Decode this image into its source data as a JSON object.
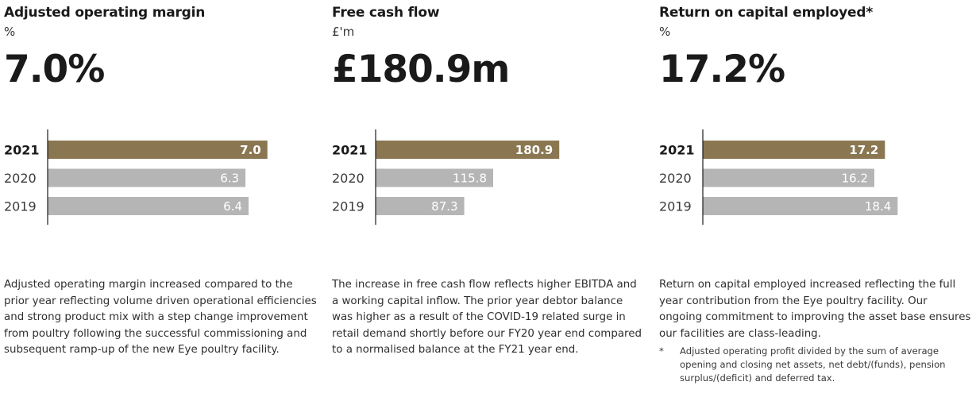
{
  "colors": {
    "current": "#8a7752",
    "prior": "#b5b5b5",
    "axis": "#1a1a1a"
  },
  "panels": [
    {
      "title": "Adjusted operating margin",
      "unit": "%",
      "headline": "7.0%",
      "description": "Adjusted operating margin increased compared to the prior year reflecting volume driven operational efficiencies and strong product mix with a step change improvement from poultry following the successful commissioning and subsequent ramp-up of the new Eye poultry facility."
    },
    {
      "title": "Free cash flow",
      "unit": "£'m",
      "headline": "£180.9m",
      "description": "The increase in free cash flow reflects higher EBITDA and a working capital inflow. The prior year debtor balance was higher as a result of the COVID-19 related surge in retail demand shortly before our FY20 year end compared to a normalised balance at the FY21 year end."
    },
    {
      "title": "Return on capital employed*",
      "unit": "%",
      "headline": "17.2%",
      "description": "Return on capital employed increased reflecting the full year contribution from the Eye poultry facility. Our ongoing commitment to improving the asset base ensures our facilities are class-leading.",
      "footnote_mark": "*",
      "footnote": "Adjusted operating profit divided by the sum of average opening and closing net assets, net debt/(funds), pension surplus/(deficit) and deferred tax."
    }
  ],
  "chart_data": [
    {
      "type": "bar",
      "orientation": "horizontal",
      "categories": [
        "2021",
        "2020",
        "2019"
      ],
      "values": [
        7.0,
        6.3,
        6.4
      ],
      "value_labels": [
        "7.0",
        "6.3",
        "6.4"
      ],
      "xlim": [
        0,
        8.6
      ],
      "highlight_index": 0
    },
    {
      "type": "bar",
      "orientation": "horizontal",
      "categories": [
        "2021",
        "2020",
        "2019"
      ],
      "values": [
        180.9,
        115.8,
        87.3
      ],
      "value_labels": [
        "180.9",
        "115.8",
        "87.3"
      ],
      "xlim": [
        0,
        266
      ],
      "highlight_index": 0
    },
    {
      "type": "bar",
      "orientation": "horizontal",
      "categories": [
        "2021",
        "2020",
        "2019"
      ],
      "values": [
        17.2,
        16.2,
        18.4
      ],
      "value_labels": [
        "17.2",
        "16.2",
        "18.4"
      ],
      "xlim": [
        0,
        25.5
      ],
      "highlight_index": 0
    }
  ]
}
